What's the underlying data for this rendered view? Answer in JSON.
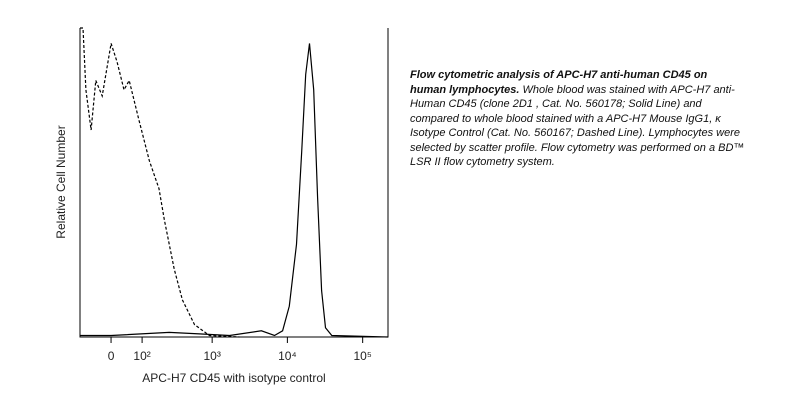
{
  "chart_data": {
    "type": "line",
    "x_label": "APC-H7 CD45 with isotype control",
    "y_label": "Relative Cell Number",
    "xscale": "biexponential",
    "xlim": [
      -100,
      217000
    ],
    "xticks": [
      0,
      {
        "value": 100,
        "label": "10²"
      },
      {
        "value": 1000,
        "label": "10³"
      },
      {
        "value": 10000,
        "label": "10⁴"
      },
      {
        "value": 100000,
        "label": "10⁵"
      }
    ],
    "ylim": [
      0,
      100
    ],
    "series": [
      {
        "color": "#000000",
        "style": "solid",
        "x": [
          -100,
          0,
          262,
          673,
          1700,
          4520,
          6750,
          8650,
          10600,
          13200,
          15500,
          17500,
          19700,
          22400,
          25200,
          28500,
          32100,
          38900,
          217000
        ],
        "values": [
          0.5,
          0.5,
          1.5,
          1,
          0.5,
          2,
          0.5,
          2,
          10,
          30,
          60,
          85,
          95,
          80,
          45,
          15,
          3,
          0.5,
          0
        ]
      },
      {
        "color": "#000000",
        "style": "dashed",
        "x": [
          -100,
          -88,
          -77,
          -59,
          -44,
          -25,
          0,
          17,
          37,
          53,
          88,
          133,
          187,
          223,
          307,
          398,
          580,
          920,
          2300
        ],
        "values": [
          100,
          100,
          80,
          67,
          83,
          78,
          95,
          89,
          80,
          83,
          70,
          57,
          48,
          38,
          22,
          12,
          4,
          0.5,
          0
        ]
      }
    ]
  },
  "caption": {
    "bold": "Flow cytometric analysis of APC-H7 anti-human CD45 on human lymphocytes.",
    "text": "Whole blood was stained with APC-H7 anti-Human CD45 (clone 2D1 , Cat. No. 560178; Solid Line) and compared to whole blood stained with a APC-H7 Mouse IgG1, κ Isotype Control (Cat. No. 560167; Dashed Line). Lymphocytes were selected by scatter profile. Flow cytometry was performed on a BD™ LSR II flow cytometry system."
  }
}
